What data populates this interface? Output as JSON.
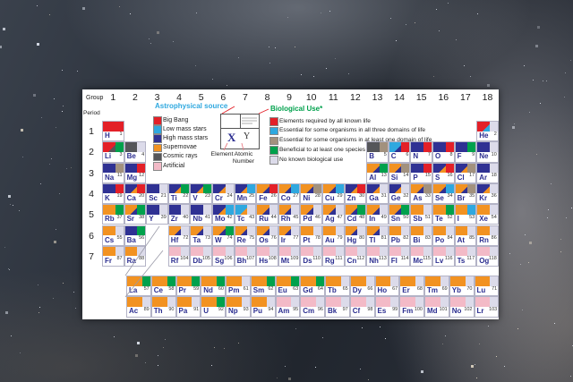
{
  "table": {
    "group_label": "Group",
    "period_label": "Period",
    "groups": [
      "1",
      "2",
      "3",
      "4",
      "5",
      "6",
      "7",
      "8",
      "9",
      "10",
      "11",
      "12",
      "13",
      "14",
      "15",
      "16",
      "17",
      "18"
    ],
    "periods": [
      "1",
      "2",
      "3",
      "4",
      "5",
      "6",
      "7"
    ]
  },
  "legend_astrophysical": {
    "title": "Astrophysical source",
    "title_color": "#2fa8df",
    "items": [
      {
        "label": "Big Bang",
        "color": "#e32028"
      },
      {
        "label": "Low mass stars",
        "color": "#2fa8df"
      },
      {
        "label": "High mass stars",
        "color": "#2f3193"
      },
      {
        "label": "Supernovae",
        "color": "#f29221"
      },
      {
        "label": "Cosmic rays",
        "color": "#55565a"
      },
      {
        "label": "Artificial",
        "color": "#f3bac7"
      }
    ]
  },
  "legend_biological": {
    "title": "Biological Use*",
    "title_color": "#00a14c",
    "items": [
      {
        "label": "Elements required by all known life",
        "color": "#e32028"
      },
      {
        "label": "Essential for some organisms in all three domains of life",
        "color": "#2fa8df"
      },
      {
        "label": "Essential for some organisms in at least one domain of life",
        "color": "#a2917e"
      },
      {
        "label": "Beneficial to at least one species",
        "color": "#00a14c"
      },
      {
        "label": "No known biological use",
        "color": "#dcdbea"
      }
    ]
  },
  "inset": {
    "symbol_placeholder": "X",
    "number_placeholder": "Y",
    "element_label": "Element",
    "atomic_number_label": "Atomic Number"
  },
  "colors": {
    "astro": {
      "bb": "#e32028",
      "lm": "#2fa8df",
      "hm": "#2f3193",
      "sn": "#f29221",
      "cr": "#55565a",
      "ar": "#f3bac7"
    },
    "bio": {
      "red": "#e32028",
      "blue": "#2fa8df",
      "gray": "#a2917e",
      "green": "#00a14c",
      "none": "#dcdbea"
    }
  },
  "elements": [
    {
      "s": "H",
      "n": "1",
      "p": 1,
      "g": 1,
      "a": [
        "bb"
      ],
      "b": "red"
    },
    {
      "s": "He",
      "n": "2",
      "p": 1,
      "g": 18,
      "a": [
        "bb",
        "lm"
      ],
      "b": "none"
    },
    {
      "s": "Li",
      "n": "3",
      "p": 2,
      "g": 1,
      "a": [
        "bb",
        "cr"
      ],
      "b": "green"
    },
    {
      "s": "Be",
      "n": "4",
      "p": 2,
      "g": 2,
      "a": [
        "cr"
      ],
      "b": "none"
    },
    {
      "s": "B",
      "n": "5",
      "p": 2,
      "g": 13,
      "a": [
        "cr"
      ],
      "b": "gray"
    },
    {
      "s": "C",
      "n": "6",
      "p": 2,
      "g": 14,
      "a": [
        "lm",
        "hm"
      ],
      "b": "red"
    },
    {
      "s": "N",
      "n": "7",
      "p": 2,
      "g": 15,
      "a": [
        "hm"
      ],
      "b": "red"
    },
    {
      "s": "O",
      "n": "8",
      "p": 2,
      "g": 16,
      "a": [
        "hm"
      ],
      "b": "red"
    },
    {
      "s": "F",
      "n": "9",
      "p": 2,
      "g": 17,
      "a": [
        "hm"
      ],
      "b": "green"
    },
    {
      "s": "Ne",
      "n": "10",
      "p": 2,
      "g": 18,
      "a": [
        "hm"
      ],
      "b": "none"
    },
    {
      "s": "Na",
      "n": "11",
      "p": 3,
      "g": 1,
      "a": [
        "hm"
      ],
      "b": "gray"
    },
    {
      "s": "Mg",
      "n": "12",
      "p": 3,
      "g": 2,
      "a": [
        "hm"
      ],
      "b": "red"
    },
    {
      "s": "Al",
      "n": "13",
      "p": 3,
      "g": 13,
      "a": [
        "sn",
        "hm"
      ],
      "b": "green"
    },
    {
      "s": "Si",
      "n": "14",
      "p": 3,
      "g": 14,
      "a": [
        "sn",
        "hm"
      ],
      "b": "gray"
    },
    {
      "s": "P",
      "n": "15",
      "p": 3,
      "g": 15,
      "a": [
        "hm"
      ],
      "b": "red"
    },
    {
      "s": "S",
      "n": "16",
      "p": 3,
      "g": 16,
      "a": [
        "hm",
        "sn"
      ],
      "b": "red"
    },
    {
      "s": "Cl",
      "n": "17",
      "p": 3,
      "g": 17,
      "a": [
        "hm",
        "sn"
      ],
      "b": "gray"
    },
    {
      "s": "Ar",
      "n": "18",
      "p": 3,
      "g": 18,
      "a": [
        "hm"
      ],
      "b": "none"
    },
    {
      "s": "K",
      "n": "19",
      "p": 4,
      "g": 1,
      "a": [
        "hm"
      ],
      "b": "red"
    },
    {
      "s": "Ca",
      "n": "20",
      "p": 4,
      "g": 2,
      "a": [
        "hm",
        "sn"
      ],
      "b": "red"
    },
    {
      "s": "Sc",
      "n": "21",
      "p": 4,
      "g": 3,
      "a": [
        "hm"
      ],
      "b": "none"
    },
    {
      "s": "Ti",
      "n": "22",
      "p": 4,
      "g": 4,
      "a": [
        "hm",
        "sn"
      ],
      "b": "green"
    },
    {
      "s": "V",
      "n": "23",
      "p": 4,
      "g": 5,
      "a": [
        "hm",
        "sn"
      ],
      "b": "green"
    },
    {
      "s": "Cr",
      "n": "24",
      "p": 4,
      "g": 6,
      "a": [
        "hm",
        "sn"
      ],
      "b": "none"
    },
    {
      "s": "Mn",
      "n": "25",
      "p": 4,
      "g": 7,
      "a": [
        "hm",
        "sn"
      ],
      "b": "blue"
    },
    {
      "s": "Fe",
      "n": "26",
      "p": 4,
      "g": 8,
      "a": [
        "sn",
        "hm"
      ],
      "b": "red"
    },
    {
      "s": "Co",
      "n": "27",
      "p": 4,
      "g": 9,
      "a": [
        "sn",
        "hm"
      ],
      "b": "blue"
    },
    {
      "s": "Ni",
      "n": "28",
      "p": 4,
      "g": 10,
      "a": [
        "sn",
        "hm"
      ],
      "b": "gray"
    },
    {
      "s": "Cu",
      "n": "29",
      "p": 4,
      "g": 11,
      "a": [
        "sn",
        "hm"
      ],
      "b": "blue"
    },
    {
      "s": "Zn",
      "n": "30",
      "p": 4,
      "g": 12,
      "a": [
        "hm",
        "sn"
      ],
      "b": "red"
    },
    {
      "s": "Ga",
      "n": "31",
      "p": 4,
      "g": 13,
      "a": [
        "hm",
        "sn"
      ],
      "b": "none"
    },
    {
      "s": "Ge",
      "n": "32",
      "p": 4,
      "g": 14,
      "a": [
        "hm",
        "sn"
      ],
      "b": "none"
    },
    {
      "s": "As",
      "n": "33",
      "p": 4,
      "g": 15,
      "a": [
        "sn",
        "hm"
      ],
      "b": "gray"
    },
    {
      "s": "Se",
      "n": "34",
      "p": 4,
      "g": 16,
      "a": [
        "sn",
        "hm"
      ],
      "b": "blue"
    },
    {
      "s": "Br",
      "n": "35",
      "p": 4,
      "g": 17,
      "a": [
        "sn",
        "hm"
      ],
      "b": "gray"
    },
    {
      "s": "Kr",
      "n": "36",
      "p": 4,
      "g": 18,
      "a": [
        "hm",
        "sn"
      ],
      "b": "none"
    },
    {
      "s": "Rb",
      "n": "37",
      "p": 5,
      "g": 1,
      "a": [
        "sn"
      ],
      "b": "green"
    },
    {
      "s": "Sr",
      "n": "38",
      "p": 5,
      "g": 2,
      "a": [
        "sn",
        "hm"
      ],
      "b": "green"
    },
    {
      "s": "Y",
      "n": "39",
      "p": 5,
      "g": 3,
      "a": [
        "hm"
      ],
      "b": "none"
    },
    {
      "s": "Zr",
      "n": "40",
      "p": 5,
      "g": 4,
      "a": [
        "hm"
      ],
      "b": "none"
    },
    {
      "s": "Nb",
      "n": "41",
      "p": 5,
      "g": 5,
      "a": [
        "hm"
      ],
      "b": "none"
    },
    {
      "s": "Mo",
      "n": "42",
      "p": 5,
      "g": 6,
      "a": [
        "hm",
        "sn"
      ],
      "b": "blue"
    },
    {
      "s": "Tc",
      "n": "43",
      "p": 5,
      "g": 7,
      "a": [
        "lm",
        "sn"
      ],
      "b": "none"
    },
    {
      "s": "Ru",
      "n": "44",
      "p": 5,
      "g": 8,
      "a": [
        "sn",
        "hm"
      ],
      "b": "none"
    },
    {
      "s": "Rh",
      "n": "45",
      "p": 5,
      "g": 9,
      "a": [
        "sn",
        "hm"
      ],
      "b": "none"
    },
    {
      "s": "Pd",
      "n": "46",
      "p": 5,
      "g": 10,
      "a": [
        "sn",
        "hm"
      ],
      "b": "none"
    },
    {
      "s": "Ag",
      "n": "47",
      "p": 5,
      "g": 11,
      "a": [
        "sn",
        "hm"
      ],
      "b": "none"
    },
    {
      "s": "Cd",
      "n": "48",
      "p": 5,
      "g": 12,
      "a": [
        "sn",
        "hm"
      ],
      "b": "green"
    },
    {
      "s": "In",
      "n": "49",
      "p": 5,
      "g": 13,
      "a": [
        "sn",
        "hm"
      ],
      "b": "none"
    },
    {
      "s": "Sn",
      "n": "50",
      "p": 5,
      "g": 14,
      "a": [
        "sn",
        "hm"
      ],
      "b": "green"
    },
    {
      "s": "Sb",
      "n": "51",
      "p": 5,
      "g": 15,
      "a": [
        "sn"
      ],
      "b": "none"
    },
    {
      "s": "Te",
      "n": "52",
      "p": 5,
      "g": 16,
      "a": [
        "sn"
      ],
      "b": "green"
    },
    {
      "s": "I",
      "n": "53",
      "p": 5,
      "g": 17,
      "a": [
        "sn"
      ],
      "b": "blue"
    },
    {
      "s": "Xe",
      "n": "54",
      "p": 5,
      "g": 18,
      "a": [
        "sn"
      ],
      "b": "none"
    },
    {
      "s": "Cs",
      "n": "55",
      "p": 6,
      "g": 1,
      "a": [
        "sn"
      ],
      "b": "none"
    },
    {
      "s": "Ba",
      "n": "56",
      "p": 6,
      "g": 2,
      "a": [
        "hm"
      ],
      "b": "green"
    },
    {
      "s": "Hf",
      "n": "72",
      "p": 6,
      "g": 4,
      "a": [
        "sn",
        "hm"
      ],
      "b": "none"
    },
    {
      "s": "Ta",
      "n": "73",
      "p": 6,
      "g": 5,
      "a": [
        "sn",
        "hm"
      ],
      "b": "none"
    },
    {
      "s": "W",
      "n": "74",
      "p": 6,
      "g": 6,
      "a": [
        "sn",
        "hm"
      ],
      "b": "green"
    },
    {
      "s": "Re",
      "n": "75",
      "p": 6,
      "g": 7,
      "a": [
        "sn",
        "hm"
      ],
      "b": "none"
    },
    {
      "s": "Os",
      "n": "76",
      "p": 6,
      "g": 8,
      "a": [
        "sn",
        "hm"
      ],
      "b": "none"
    },
    {
      "s": "Ir",
      "n": "77",
      "p": 6,
      "g": 9,
      "a": [
        "sn",
        "hm"
      ],
      "b": "none"
    },
    {
      "s": "Pt",
      "n": "78",
      "p": 6,
      "g": 10,
      "a": [
        "sn"
      ],
      "b": "none"
    },
    {
      "s": "Au",
      "n": "79",
      "p": 6,
      "g": 11,
      "a": [
        "sn"
      ],
      "b": "none"
    },
    {
      "s": "Hg",
      "n": "80",
      "p": 6,
      "g": 12,
      "a": [
        "sn",
        "hm"
      ],
      "b": "none"
    },
    {
      "s": "Tl",
      "n": "81",
      "p": 6,
      "g": 13,
      "a": [
        "sn",
        "hm"
      ],
      "b": "none"
    },
    {
      "s": "Pb",
      "n": "82",
      "p": 6,
      "g": 14,
      "a": [
        "sn"
      ],
      "b": "none"
    },
    {
      "s": "Bi",
      "n": "83",
      "p": 6,
      "g": 15,
      "a": [
        "sn"
      ],
      "b": "none"
    },
    {
      "s": "Po",
      "n": "84",
      "p": 6,
      "g": 16,
      "a": [
        "sn"
      ],
      "b": "none"
    },
    {
      "s": "At",
      "n": "85",
      "p": 6,
      "g": 17,
      "a": [
        "sn"
      ],
      "b": "none"
    },
    {
      "s": "Rn",
      "n": "86",
      "p": 6,
      "g": 18,
      "a": [
        "sn"
      ],
      "b": "none"
    },
    {
      "s": "Fr",
      "n": "87",
      "p": 7,
      "g": 1,
      "a": [
        "sn"
      ],
      "b": "none"
    },
    {
      "s": "Ra",
      "n": "88",
      "p": 7,
      "g": 2,
      "a": [
        "sn"
      ],
      "b": "none"
    },
    {
      "s": "Rf",
      "n": "104",
      "p": 7,
      "g": 4,
      "a": [
        "ar"
      ],
      "b": "none"
    },
    {
      "s": "Db",
      "n": "105",
      "p": 7,
      "g": 5,
      "a": [
        "ar"
      ],
      "b": "none"
    },
    {
      "s": "Sg",
      "n": "106",
      "p": 7,
      "g": 6,
      "a": [
        "ar"
      ],
      "b": "none"
    },
    {
      "s": "Bh",
      "n": "107",
      "p": 7,
      "g": 7,
      "a": [
        "ar"
      ],
      "b": "none"
    },
    {
      "s": "Hs",
      "n": "108",
      "p": 7,
      "g": 8,
      "a": [
        "ar"
      ],
      "b": "none"
    },
    {
      "s": "Mt",
      "n": "109",
      "p": 7,
      "g": 9,
      "a": [
        "ar"
      ],
      "b": "none"
    },
    {
      "s": "Ds",
      "n": "110",
      "p": 7,
      "g": 10,
      "a": [
        "ar"
      ],
      "b": "none"
    },
    {
      "s": "Rg",
      "n": "111",
      "p": 7,
      "g": 11,
      "a": [
        "ar"
      ],
      "b": "none"
    },
    {
      "s": "Cn",
      "n": "112",
      "p": 7,
      "g": 12,
      "a": [
        "ar"
      ],
      "b": "none"
    },
    {
      "s": "Nh",
      "n": "113",
      "p": 7,
      "g": 13,
      "a": [
        "ar"
      ],
      "b": "none"
    },
    {
      "s": "Fl",
      "n": "114",
      "p": 7,
      "g": 14,
      "a": [
        "ar"
      ],
      "b": "none"
    },
    {
      "s": "Mc",
      "n": "115",
      "p": 7,
      "g": 15,
      "a": [
        "ar"
      ],
      "b": "none"
    },
    {
      "s": "Lv",
      "n": "116",
      "p": 7,
      "g": 16,
      "a": [
        "ar"
      ],
      "b": "none"
    },
    {
      "s": "Ts",
      "n": "117",
      "p": 7,
      "g": 17,
      "a": [
        "ar"
      ],
      "b": "none"
    },
    {
      "s": "Og",
      "n": "118",
      "p": 7,
      "g": 18,
      "a": [
        "ar"
      ],
      "b": "none"
    },
    {
      "s": "La",
      "n": "57",
      "p": "L",
      "g": 1,
      "a": [
        "sn"
      ],
      "b": "green"
    },
    {
      "s": "Ce",
      "n": "58",
      "p": "L",
      "g": 2,
      "a": [
        "sn"
      ],
      "b": "green"
    },
    {
      "s": "Pr",
      "n": "59",
      "p": "L",
      "g": 3,
      "a": [
        "sn"
      ],
      "b": "green"
    },
    {
      "s": "Nd",
      "n": "60",
      "p": "L",
      "g": 4,
      "a": [
        "sn"
      ],
      "b": "green"
    },
    {
      "s": "Pm",
      "n": "61",
      "p": "L",
      "g": 5,
      "a": [
        "sn"
      ],
      "b": "none"
    },
    {
      "s": "Sm",
      "n": "62",
      "p": "L",
      "g": 6,
      "a": [
        "sn"
      ],
      "b": "green"
    },
    {
      "s": "Eu",
      "n": "63",
      "p": "L",
      "g": 7,
      "a": [
        "sn"
      ],
      "b": "green"
    },
    {
      "s": "Gd",
      "n": "64",
      "p": "L",
      "g": 8,
      "a": [
        "sn"
      ],
      "b": "green"
    },
    {
      "s": "Tb",
      "n": "65",
      "p": "L",
      "g": 9,
      "a": [
        "sn"
      ],
      "b": "none"
    },
    {
      "s": "Dy",
      "n": "66",
      "p": "L",
      "g": 10,
      "a": [
        "sn"
      ],
      "b": "none"
    },
    {
      "s": "Ho",
      "n": "67",
      "p": "L",
      "g": 11,
      "a": [
        "sn"
      ],
      "b": "none"
    },
    {
      "s": "Er",
      "n": "68",
      "p": "L",
      "g": 12,
      "a": [
        "sn"
      ],
      "b": "none"
    },
    {
      "s": "Tm",
      "n": "69",
      "p": "L",
      "g": 13,
      "a": [
        "sn"
      ],
      "b": "none"
    },
    {
      "s": "Yb",
      "n": "70",
      "p": "L",
      "g": 14,
      "a": [
        "sn"
      ],
      "b": "none"
    },
    {
      "s": "Lu",
      "n": "71",
      "p": "L",
      "g": 15,
      "a": [
        "sn"
      ],
      "b": "none"
    },
    {
      "s": "Ac",
      "n": "89",
      "p": "A",
      "g": 1,
      "a": [
        "sn"
      ],
      "b": "none"
    },
    {
      "s": "Th",
      "n": "90",
      "p": "A",
      "g": 2,
      "a": [
        "sn"
      ],
      "b": "none"
    },
    {
      "s": "Pa",
      "n": "91",
      "p": "A",
      "g": 3,
      "a": [
        "sn"
      ],
      "b": "none"
    },
    {
      "s": "U",
      "n": "92",
      "p": "A",
      "g": 4,
      "a": [
        "sn"
      ],
      "b": "green"
    },
    {
      "s": "Np",
      "n": "93",
      "p": "A",
      "g": 5,
      "a": [
        "sn"
      ],
      "b": "none"
    },
    {
      "s": "Pu",
      "n": "94",
      "p": "A",
      "g": 6,
      "a": [
        "sn"
      ],
      "b": "none"
    },
    {
      "s": "Am",
      "n": "95",
      "p": "A",
      "g": 7,
      "a": [
        "ar"
      ],
      "b": "none"
    },
    {
      "s": "Cm",
      "n": "96",
      "p": "A",
      "g": 8,
      "a": [
        "ar"
      ],
      "b": "none"
    },
    {
      "s": "Bk",
      "n": "97",
      "p": "A",
      "g": 9,
      "a": [
        "ar"
      ],
      "b": "none"
    },
    {
      "s": "Cf",
      "n": "98",
      "p": "A",
      "g": 10,
      "a": [
        "ar"
      ],
      "b": "none"
    },
    {
      "s": "Es",
      "n": "99",
      "p": "A",
      "g": 11,
      "a": [
        "ar"
      ],
      "b": "none"
    },
    {
      "s": "Fm",
      "n": "100",
      "p": "A",
      "g": 12,
      "a": [
        "ar"
      ],
      "b": "none"
    },
    {
      "s": "Md",
      "n": "101",
      "p": "A",
      "g": 13,
      "a": [
        "ar"
      ],
      "b": "none"
    },
    {
      "s": "No",
      "n": "102",
      "p": "A",
      "g": 14,
      "a": [
        "ar"
      ],
      "b": "none"
    },
    {
      "s": "Lr",
      "n": "103",
      "p": "A",
      "g": 15,
      "a": [
        "ar"
      ],
      "b": "none"
    }
  ]
}
